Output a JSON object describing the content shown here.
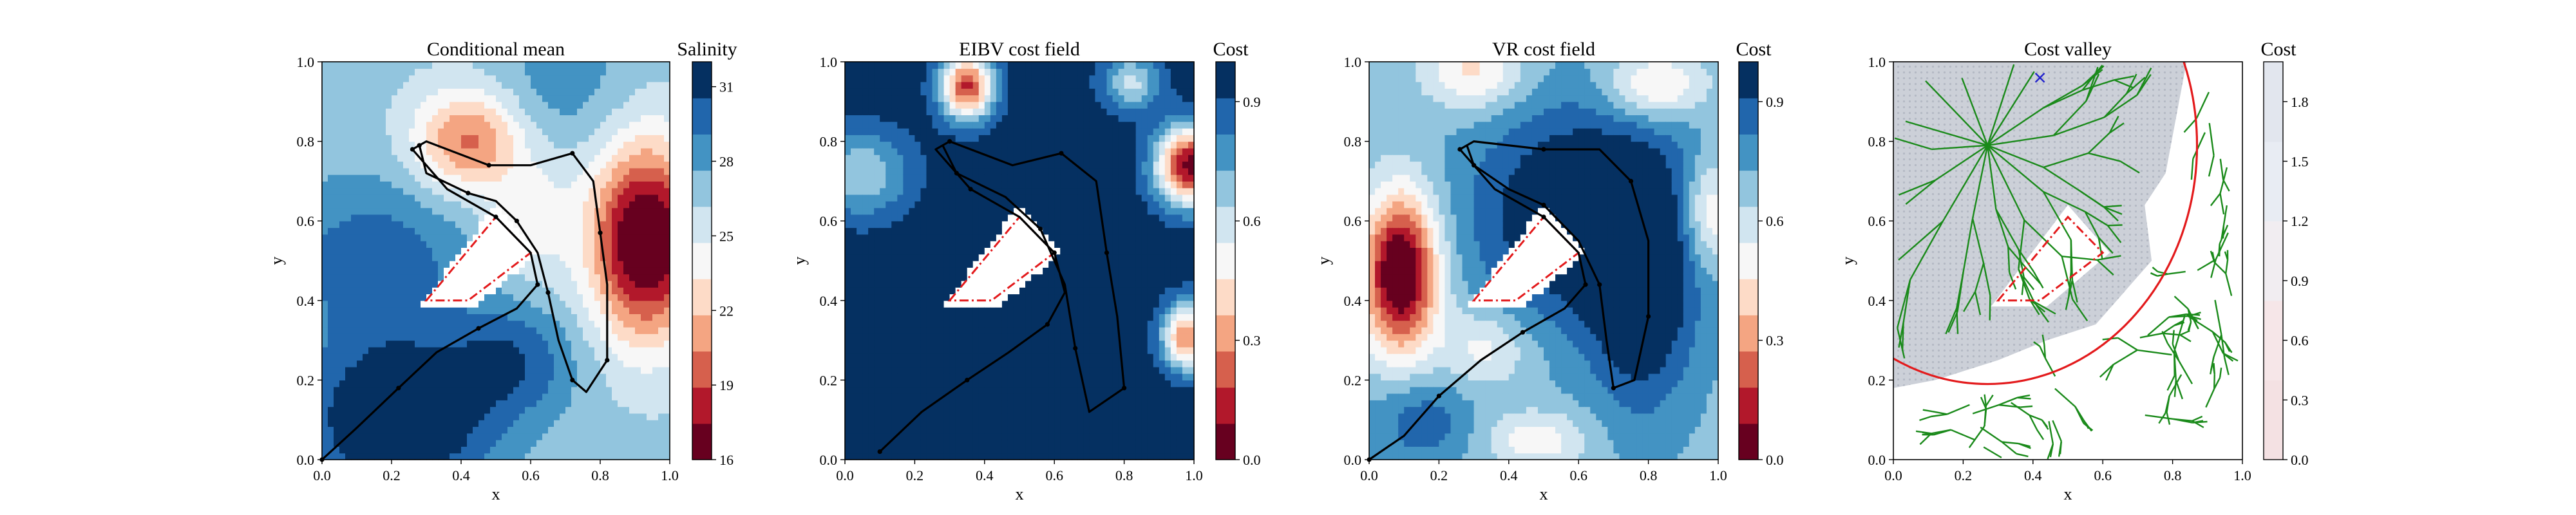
{
  "chart_data": [
    {
      "type": "heatmap",
      "title": "Conditional mean",
      "xlabel": "x",
      "ylabel": "y",
      "xlim": [
        0,
        1
      ],
      "ylim": [
        0,
        1
      ],
      "xticks": [
        "0.0",
        "0.2",
        "0.4",
        "0.6",
        "0.8",
        "1.0"
      ],
      "yticks": [
        "0.0",
        "0.2",
        "0.4",
        "0.6",
        "0.8",
        "1.0"
      ],
      "colorbar": {
        "title": "Salinity",
        "range": [
          16,
          32
        ],
        "ticks": [
          "16",
          "19",
          "22",
          "25",
          "28",
          "31"
        ],
        "colormap": [
          "#67001f",
          "#b2182b",
          "#d6604d",
          "#f4a582",
          "#fddbc7",
          "#f7f7f7",
          "#d1e5f0",
          "#92c5de",
          "#4393c3",
          "#2166ac",
          "#053061"
        ]
      },
      "obstacle": [
        [
          0.3,
          0.4
        ],
        [
          0.5,
          0.61
        ],
        [
          0.6,
          0.52
        ],
        [
          0.42,
          0.4
        ]
      ],
      "path": [
        [
          0.0,
          0.0
        ],
        [
          0.1,
          0.08
        ],
        [
          0.22,
          0.18
        ],
        [
          0.33,
          0.27
        ],
        [
          0.45,
          0.33
        ],
        [
          0.56,
          0.38
        ],
        [
          0.62,
          0.44
        ],
        [
          0.6,
          0.52
        ],
        [
          0.5,
          0.61
        ],
        [
          0.36,
          0.68
        ],
        [
          0.26,
          0.78
        ],
        [
          0.3,
          0.8
        ],
        [
          0.48,
          0.74
        ],
        [
          0.6,
          0.74
        ],
        [
          0.72,
          0.77
        ],
        [
          0.78,
          0.7
        ],
        [
          0.8,
          0.57
        ],
        [
          0.82,
          0.44
        ],
        [
          0.82,
          0.25
        ],
        [
          0.76,
          0.17
        ],
        [
          0.72,
          0.2
        ],
        [
          0.68,
          0.3
        ],
        [
          0.65,
          0.42
        ],
        [
          0.62,
          0.52
        ],
        [
          0.56,
          0.6
        ],
        [
          0.5,
          0.65
        ],
        [
          0.42,
          0.67
        ],
        [
          0.3,
          0.72
        ],
        [
          0.28,
          0.79
        ]
      ]
    },
    {
      "type": "heatmap",
      "title": "EIBV cost field",
      "xlabel": "x",
      "ylabel": "y",
      "xlim": [
        0,
        1
      ],
      "ylim": [
        0,
        1
      ],
      "xticks": [
        "0.0",
        "0.2",
        "0.4",
        "0.6",
        "0.8",
        "1.0"
      ],
      "yticks": [
        "0.0",
        "0.2",
        "0.4",
        "0.6",
        "0.8",
        "1.0"
      ],
      "colorbar": {
        "title": "Cost",
        "range": [
          0,
          1
        ],
        "ticks": [
          "0.0",
          "0.3",
          "0.6",
          "0.9"
        ],
        "colormap": [
          "#67001f",
          "#b2182b",
          "#d6604d",
          "#f4a582",
          "#fddbc7",
          "#f7f7f7",
          "#d1e5f0",
          "#92c5de",
          "#4393c3",
          "#2166ac",
          "#053061"
        ]
      },
      "obstacle": [
        [
          0.3,
          0.4
        ],
        [
          0.5,
          0.61
        ],
        [
          0.6,
          0.52
        ],
        [
          0.42,
          0.4
        ]
      ],
      "path": [
        [
          0.1,
          0.02
        ],
        [
          0.22,
          0.12
        ],
        [
          0.35,
          0.2
        ],
        [
          0.47,
          0.27
        ],
        [
          0.58,
          0.34
        ],
        [
          0.63,
          0.42
        ],
        [
          0.6,
          0.52
        ],
        [
          0.5,
          0.61
        ],
        [
          0.36,
          0.68
        ],
        [
          0.26,
          0.78
        ],
        [
          0.3,
          0.8
        ],
        [
          0.48,
          0.74
        ],
        [
          0.62,
          0.77
        ],
        [
          0.72,
          0.7
        ],
        [
          0.75,
          0.52
        ],
        [
          0.78,
          0.36
        ],
        [
          0.8,
          0.18
        ],
        [
          0.7,
          0.12
        ],
        [
          0.66,
          0.28
        ],
        [
          0.63,
          0.44
        ],
        [
          0.56,
          0.58
        ],
        [
          0.46,
          0.66
        ],
        [
          0.32,
          0.72
        ],
        [
          0.28,
          0.79
        ]
      ]
    },
    {
      "type": "heatmap",
      "title": "VR cost field",
      "xlabel": "x",
      "ylabel": "y",
      "xlim": [
        0,
        1
      ],
      "ylim": [
        0,
        1
      ],
      "xticks": [
        "0.0",
        "0.2",
        "0.4",
        "0.6",
        "0.8",
        "1.0"
      ],
      "yticks": [
        "0.0",
        "0.2",
        "0.4",
        "0.6",
        "0.8",
        "1.0"
      ],
      "colorbar": {
        "title": "Cost",
        "range": [
          0,
          1
        ],
        "ticks": [
          "0.0",
          "0.3",
          "0.6",
          "0.9"
        ],
        "colormap": [
          "#67001f",
          "#b2182b",
          "#d6604d",
          "#f4a582",
          "#fddbc7",
          "#f7f7f7",
          "#d1e5f0",
          "#92c5de",
          "#4393c3",
          "#2166ac",
          "#053061"
        ]
      },
      "obstacle": [
        [
          0.3,
          0.4
        ],
        [
          0.5,
          0.61
        ],
        [
          0.6,
          0.52
        ],
        [
          0.42,
          0.4
        ]
      ],
      "path": [
        [
          0.0,
          0.0
        ],
        [
          0.1,
          0.06
        ],
        [
          0.2,
          0.16
        ],
        [
          0.32,
          0.25
        ],
        [
          0.44,
          0.32
        ],
        [
          0.56,
          0.38
        ],
        [
          0.62,
          0.44
        ],
        [
          0.6,
          0.52
        ],
        [
          0.5,
          0.61
        ],
        [
          0.36,
          0.68
        ],
        [
          0.26,
          0.78
        ],
        [
          0.3,
          0.8
        ],
        [
          0.5,
          0.78
        ],
        [
          0.66,
          0.78
        ],
        [
          0.75,
          0.7
        ],
        [
          0.8,
          0.55
        ],
        [
          0.8,
          0.36
        ],
        [
          0.76,
          0.2
        ],
        [
          0.7,
          0.18
        ],
        [
          0.68,
          0.3
        ],
        [
          0.66,
          0.44
        ],
        [
          0.6,
          0.55
        ],
        [
          0.5,
          0.64
        ],
        [
          0.4,
          0.68
        ],
        [
          0.3,
          0.74
        ],
        [
          0.28,
          0.79
        ]
      ]
    },
    {
      "type": "heatmap",
      "title": "Cost valley",
      "xlabel": "x",
      "ylabel": "y",
      "xlim": [
        0,
        1
      ],
      "ylim": [
        0,
        1
      ],
      "xticks": [
        "0.0",
        "0.2",
        "0.4",
        "0.6",
        "0.8",
        "1.0"
      ],
      "yticks": [
        "0.0",
        "0.2",
        "0.4",
        "0.6",
        "0.8",
        "1.0"
      ],
      "colorbar": {
        "title": "Cost",
        "range": [
          0,
          2
        ],
        "ticks": [
          "0.0",
          "0.3",
          "0.6",
          "0.9",
          "1.2",
          "1.5",
          "1.8"
        ],
        "colormap": [
          "#f4e1e3",
          "#f6e6e8",
          "#f1edf1",
          "#e8ecf3",
          "#e2e6ee"
        ]
      },
      "obstacle": [
        [
          0.3,
          0.4
        ],
        [
          0.5,
          0.61
        ],
        [
          0.6,
          0.52
        ],
        [
          0.42,
          0.4
        ]
      ],
      "budget_circle": {
        "center": [
          0.27,
          0.79
        ],
        "radius": 0.6
      },
      "tree_root": [
        0.27,
        0.79
      ],
      "target_marker": [
        0.42,
        0.96
      ]
    }
  ]
}
